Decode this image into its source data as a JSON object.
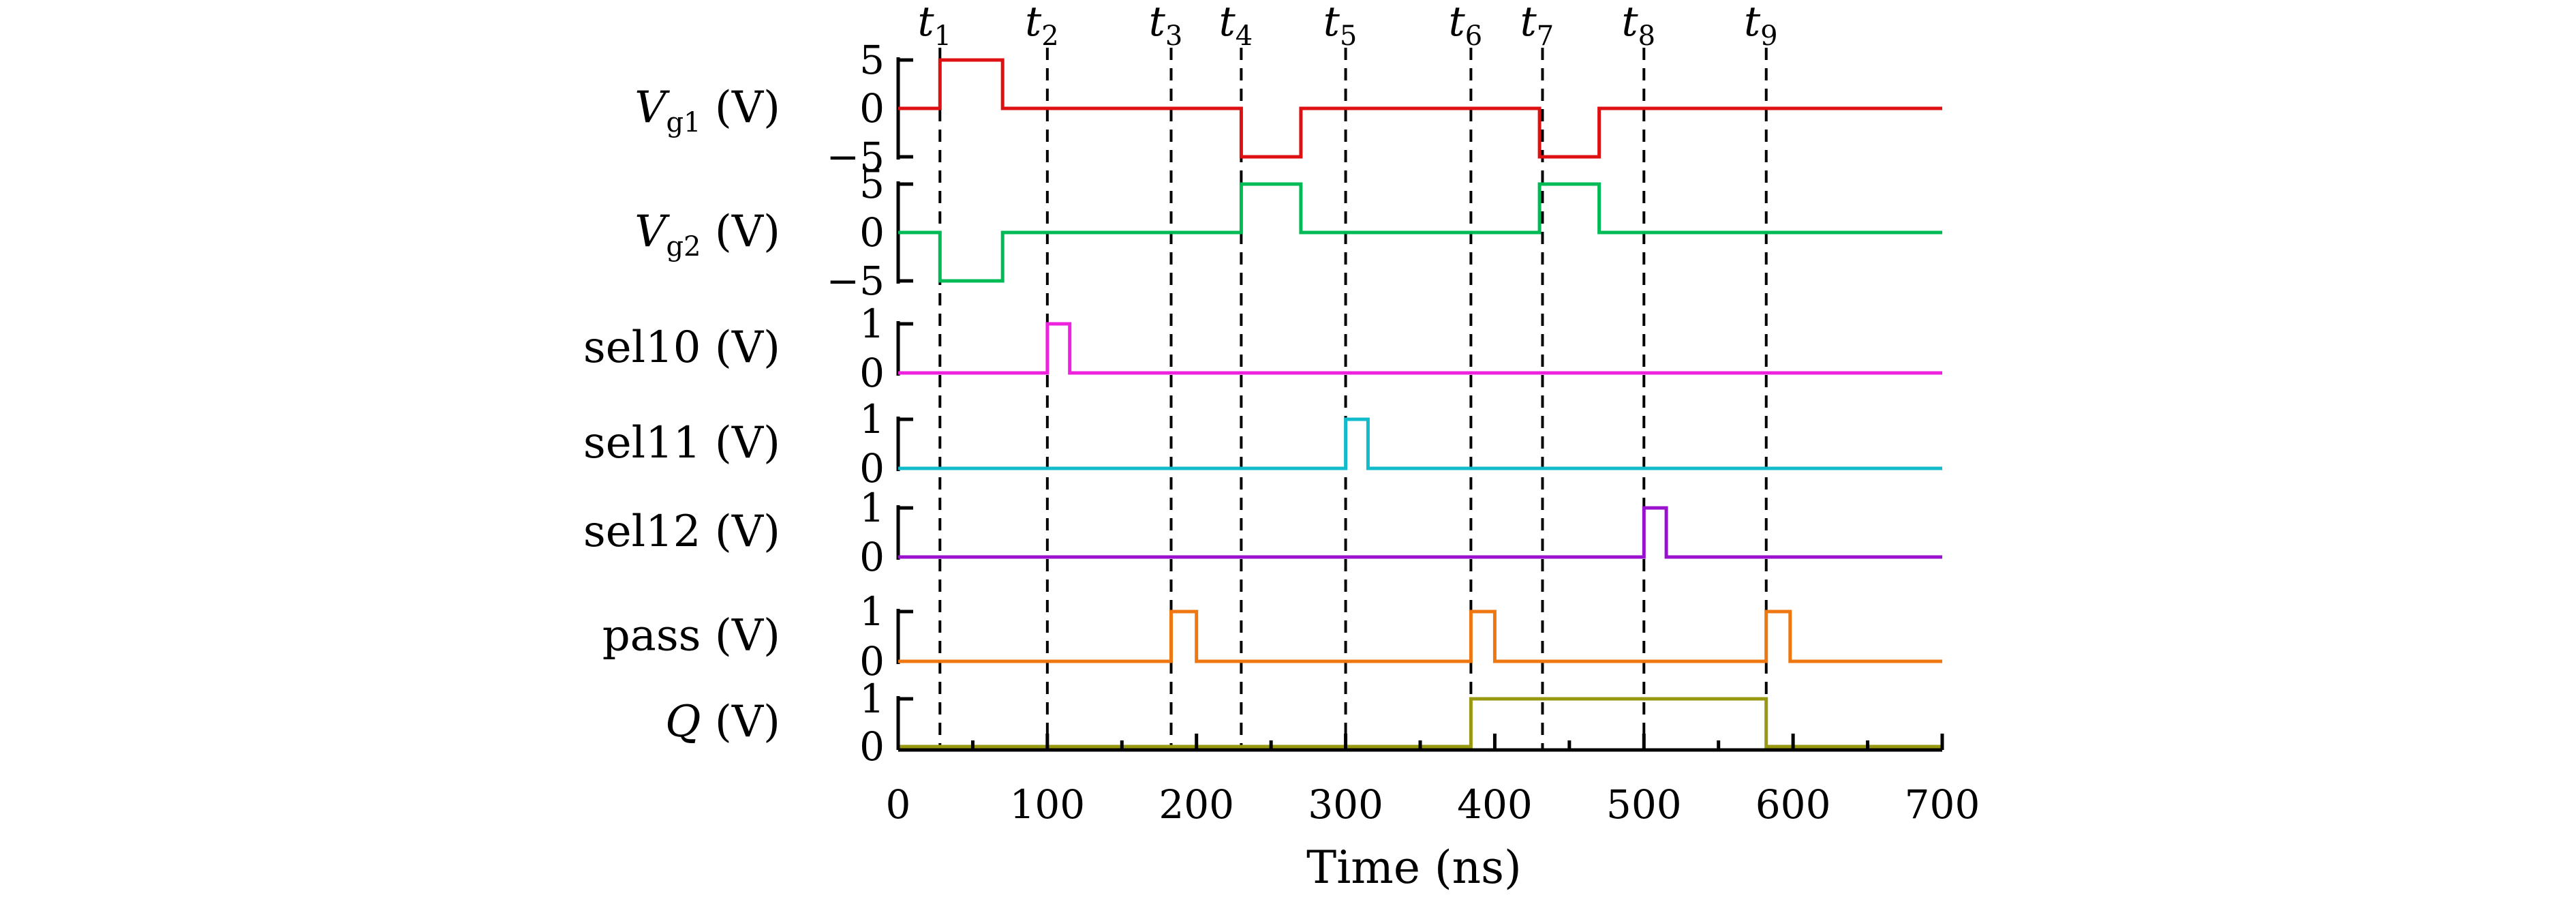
{
  "chart_data": {
    "type": "line",
    "xlabel": "Time (ns)",
    "xlim": [
      0,
      700
    ],
    "x_ticks": [
      0,
      100,
      200,
      300,
      400,
      500,
      600,
      700
    ],
    "x_tick_labels": [
      "0",
      "100",
      "200",
      "300",
      "400",
      "500",
      "600",
      "700"
    ],
    "time_markers": [
      {
        "label": "t",
        "sub": "1",
        "x": 28
      },
      {
        "label": "t",
        "sub": "2",
        "x": 100
      },
      {
        "label": "t",
        "sub": "3",
        "x": 183
      },
      {
        "label": "t",
        "sub": "4",
        "x": 230
      },
      {
        "label": "t",
        "sub": "5",
        "x": 300
      },
      {
        "label": "t",
        "sub": "6",
        "x": 384
      },
      {
        "label": "t",
        "sub": "7",
        "x": 432
      },
      {
        "label": "t",
        "sub": "8",
        "x": 500
      },
      {
        "label": "t",
        "sub": "9",
        "x": 582
      }
    ],
    "panels": [
      {
        "name": "Vg1",
        "label_main": "V",
        "label_sub": "g1",
        "label_unit": " (V)",
        "color": "#dd1111",
        "ylim": [
          -5,
          5
        ],
        "yticks": [
          5,
          0,
          -5
        ],
        "ytick_labels": [
          "5",
          "0",
          "−5"
        ],
        "x": [
          0,
          28,
          28,
          70,
          70,
          230,
          230,
          270,
          270,
          430,
          430,
          470,
          470,
          700
        ],
        "y": [
          0,
          0,
          5,
          5,
          0,
          0,
          -5,
          -5,
          0,
          0,
          -5,
          -5,
          0,
          0
        ]
      },
      {
        "name": "Vg2",
        "label_main": "V",
        "label_sub": "g2",
        "label_unit": " (V)",
        "color": "#00bb55",
        "ylim": [
          -5,
          5
        ],
        "yticks": [
          5,
          0,
          -5
        ],
        "ytick_labels": [
          "5",
          "0",
          "−5"
        ],
        "x": [
          0,
          28,
          28,
          70,
          70,
          230,
          230,
          270,
          270,
          430,
          430,
          470,
          470,
          700
        ],
        "y": [
          0,
          0,
          -5,
          -5,
          0,
          0,
          5,
          5,
          0,
          0,
          5,
          5,
          0,
          0
        ]
      },
      {
        "name": "sel10",
        "label_main": "sel10 (V)",
        "label_sub": "",
        "label_unit": "",
        "color": "#ee22dd",
        "ylim": [
          0,
          1
        ],
        "yticks": [
          1,
          0
        ],
        "ytick_labels": [
          "1",
          "0"
        ],
        "x": [
          0,
          100,
          100,
          115,
          115,
          700
        ],
        "y": [
          0,
          0,
          1,
          1,
          0,
          0
        ]
      },
      {
        "name": "sel11",
        "label_main": "sel11 (V)",
        "label_sub": "",
        "label_unit": "",
        "color": "#11bbcc",
        "ylim": [
          0,
          1
        ],
        "yticks": [
          1,
          0
        ],
        "ytick_labels": [
          "1",
          "0"
        ],
        "x": [
          0,
          300,
          300,
          315,
          315,
          700
        ],
        "y": [
          0,
          0,
          1,
          1,
          0,
          0
        ]
      },
      {
        "name": "sel12",
        "label_main": "sel12 (V)",
        "label_sub": "",
        "label_unit": "",
        "color": "#9911cc",
        "ylim": [
          0,
          1
        ],
        "yticks": [
          1,
          0
        ],
        "ytick_labels": [
          "1",
          "0"
        ],
        "x": [
          0,
          500,
          500,
          515,
          515,
          700
        ],
        "y": [
          0,
          0,
          1,
          1,
          0,
          0
        ]
      },
      {
        "name": "pass",
        "label_main": "pass (V)",
        "label_sub": "",
        "label_unit": "",
        "color": "#ee7711",
        "ylim": [
          0,
          1
        ],
        "yticks": [
          1,
          0
        ],
        "ytick_labels": [
          "1",
          "0"
        ],
        "x": [
          0,
          183,
          183,
          200,
          200,
          384,
          384,
          400,
          400,
          582,
          582,
          598,
          598,
          700
        ],
        "y": [
          0,
          0,
          1,
          1,
          0,
          0,
          1,
          1,
          0,
          0,
          1,
          1,
          0,
          0
        ]
      },
      {
        "name": "Q",
        "label_main": "Q",
        "label_sub": "",
        "label_unit": " (V)",
        "color": "#999911",
        "ylim": [
          0,
          1
        ],
        "yticks": [
          1,
          0
        ],
        "ytick_labels": [
          "1",
          "0"
        ],
        "x": [
          0,
          384,
          384,
          582,
          582,
          700
        ],
        "y": [
          0,
          0,
          1,
          1,
          0,
          0
        ]
      }
    ]
  }
}
